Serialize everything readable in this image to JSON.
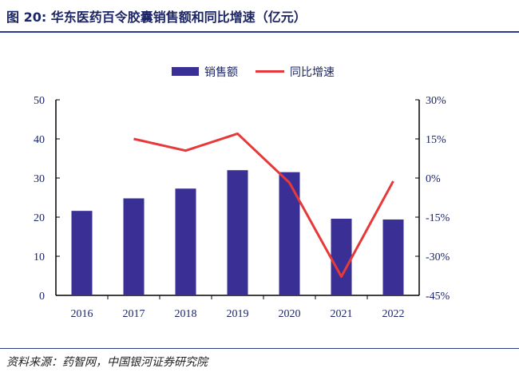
{
  "title": "图 20:  华东医药百令胶囊销售额和同比增速（亿元）",
  "source": "资料来源：药智网，中国银河证券研究院",
  "colors": {
    "bar": "#3a2f94",
    "line": "#e8393a",
    "text": "#1c2566",
    "rule": "#2b3a8c"
  },
  "chart_data": {
    "type": "bar+line",
    "categories": [
      "2016",
      "2017",
      "2018",
      "2019",
      "2020",
      "2021",
      "2022"
    ],
    "series": [
      {
        "name": "销售额",
        "type": "bar",
        "axis": "left",
        "values": [
          21.6,
          24.8,
          27.3,
          32.0,
          31.5,
          19.6,
          19.4
        ]
      },
      {
        "name": "同比增速",
        "type": "line",
        "axis": "right",
        "values": [
          null,
          15.0,
          10.5,
          17.0,
          -1.8,
          -37.8,
          -1.2
        ]
      }
    ],
    "left_axis": {
      "ylim": [
        0,
        50
      ],
      "ticks": [
        "0",
        "10",
        "20",
        "30",
        "40",
        "50"
      ]
    },
    "right_axis": {
      "ylim": [
        -45,
        30
      ],
      "ticks": [
        "-45%",
        "-30%",
        "-15%",
        "0%",
        "15%",
        "30%"
      ]
    },
    "legend": "top-center",
    "grid": false
  }
}
